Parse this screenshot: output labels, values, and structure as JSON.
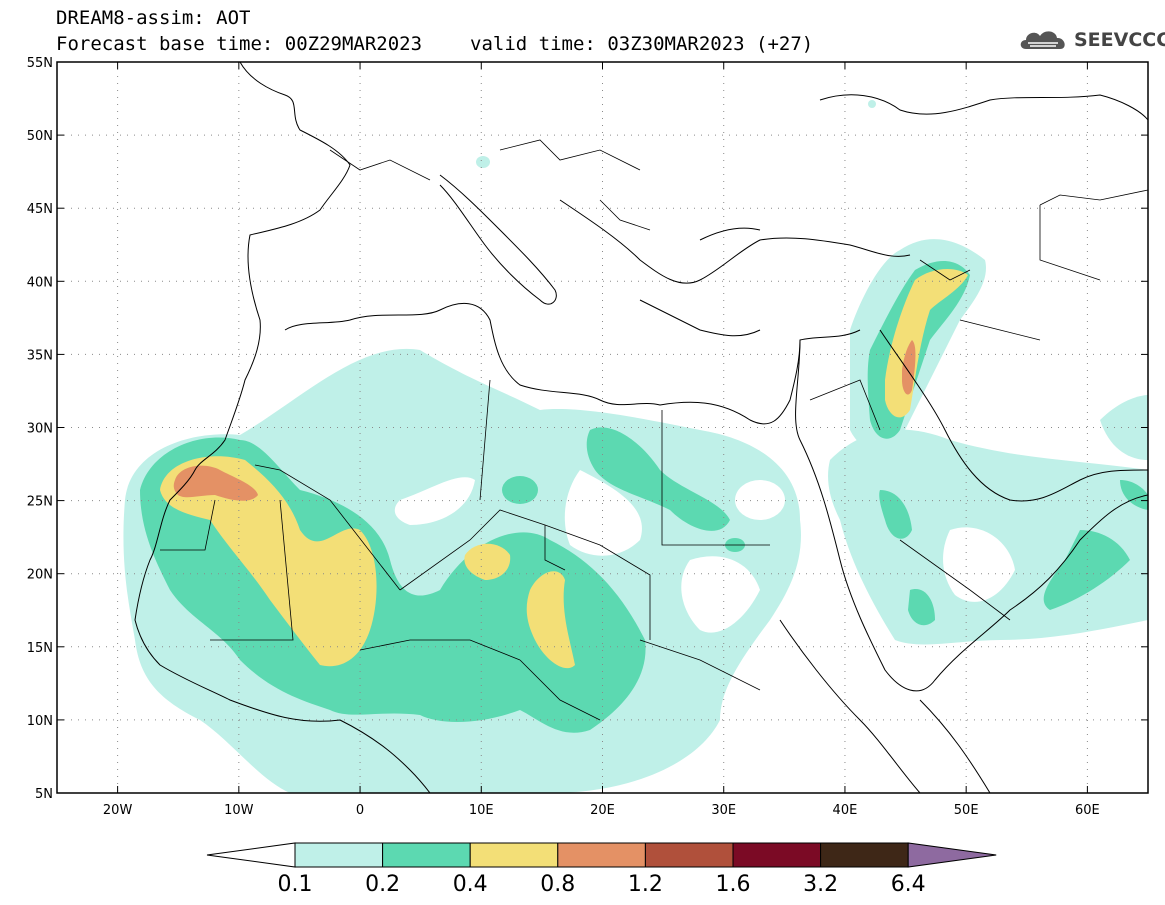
{
  "header": {
    "model_title": "DREAM8-assim: AOT",
    "base_time": "Forecast base time: 00Z29MAR2023",
    "valid_time": "valid time: 03Z30MAR2023 (+27)"
  },
  "logo": {
    "text": "SEEVCCC",
    "icon": "cloud-icon"
  },
  "map": {
    "lon_range": [
      -25,
      65
    ],
    "lat_range": [
      5,
      55
    ],
    "lat_ticks": [
      {
        "v": 55,
        "label": "55N"
      },
      {
        "v": 50,
        "label": "50N"
      },
      {
        "v": 45,
        "label": "45N"
      },
      {
        "v": 40,
        "label": "40N"
      },
      {
        "v": 35,
        "label": "35N"
      },
      {
        "v": 30,
        "label": "30N"
      },
      {
        "v": 25,
        "label": "25N"
      },
      {
        "v": 20,
        "label": "20N"
      },
      {
        "v": 15,
        "label": "15N"
      },
      {
        "v": 10,
        "label": "10N"
      },
      {
        "v": 5,
        "label": "5N"
      }
    ],
    "lon_ticks": [
      {
        "v": -20,
        "label": "20W"
      },
      {
        "v": -10,
        "label": "10W"
      },
      {
        "v": 0,
        "label": "0"
      },
      {
        "v": 10,
        "label": "10E"
      },
      {
        "v": 20,
        "label": "20E"
      },
      {
        "v": 30,
        "label": "30E"
      },
      {
        "v": 40,
        "label": "40E"
      },
      {
        "v": 50,
        "label": "50E"
      },
      {
        "v": 60,
        "label": "60E"
      }
    ]
  },
  "colorbar": {
    "levels": [
      "0.1",
      "0.2",
      "0.4",
      "0.8",
      "1.2",
      "1.6",
      "3.2",
      "6.4"
    ],
    "colors": [
      "#ffffff",
      "#bff0e8",
      "#5cd9b1",
      "#f3df77",
      "#e49165",
      "#b0503b",
      "#7b0a25",
      "#3e2717",
      "#8e6aa0"
    ]
  }
}
